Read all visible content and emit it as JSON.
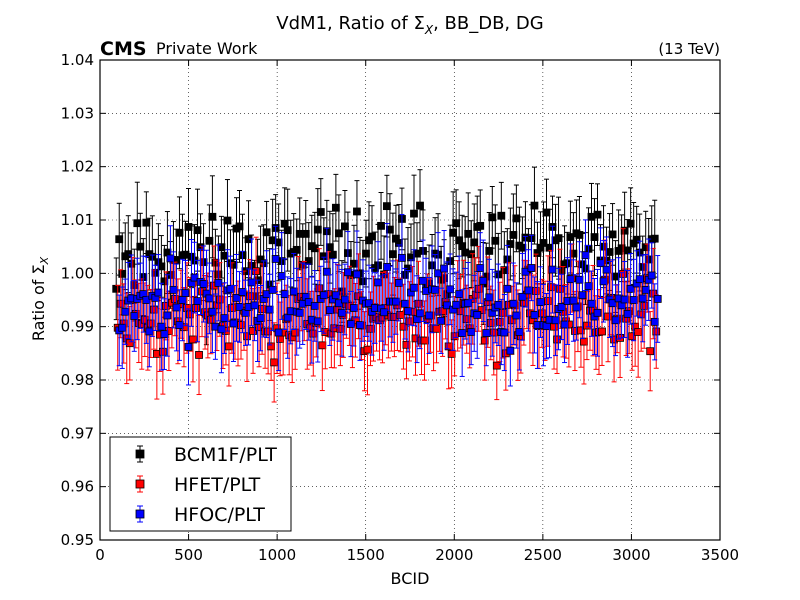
{
  "chart_data": {
    "type": "scatter",
    "title": "VdM1, Ratio of Σ",
    "title_subscript": "X",
    "title_suffix": ", BB_DB, DG",
    "experiment_label": "CMS",
    "experiment_sublabel": "Private Work",
    "energy_label": "(13 TeV)",
    "xlabel": "BCID",
    "ylabel": "Ratio of Σ",
    "ylabel_subscript": "X",
    "xlim": [
      0,
      3500
    ],
    "ylim": [
      0.95,
      1.04
    ],
    "xticks": [
      0,
      500,
      1000,
      1500,
      2000,
      2500,
      3000,
      3500
    ],
    "xtick_labels": [
      "0",
      "500",
      "1000",
      "1500",
      "2000",
      "2500",
      "3000",
      "3500"
    ],
    "yticks": [
      0.95,
      0.96,
      0.97,
      0.98,
      0.99,
      1.0,
      1.01,
      1.02,
      1.03,
      1.04
    ],
    "ytick_labels": [
      "0.95",
      "0.96",
      "0.97",
      "0.98",
      "0.99",
      "1.00",
      "1.01",
      "1.02",
      "1.03",
      "1.04"
    ],
    "grid": true,
    "legend_position": "lower-left",
    "series": [
      {
        "name": "BCM1F/PLT",
        "color": "#000000",
        "error": 0.0068,
        "values": [],
        "seed": 11,
        "center": 1.004,
        "spread": 0.0075
      },
      {
        "name": "HFET/PLT",
        "color": "#ff0000",
        "error": 0.0075,
        "values": [],
        "seed": 23,
        "center": 0.9915,
        "spread": 0.0065
      },
      {
        "name": "HFOC/PLT",
        "color": "#0000ff",
        "error": 0.0072,
        "values": [],
        "seed": 37,
        "center": 0.9945,
        "spread": 0.0065
      }
    ],
    "bcid_start": 100,
    "bcid_end": 3140,
    "n_points": 180
  }
}
